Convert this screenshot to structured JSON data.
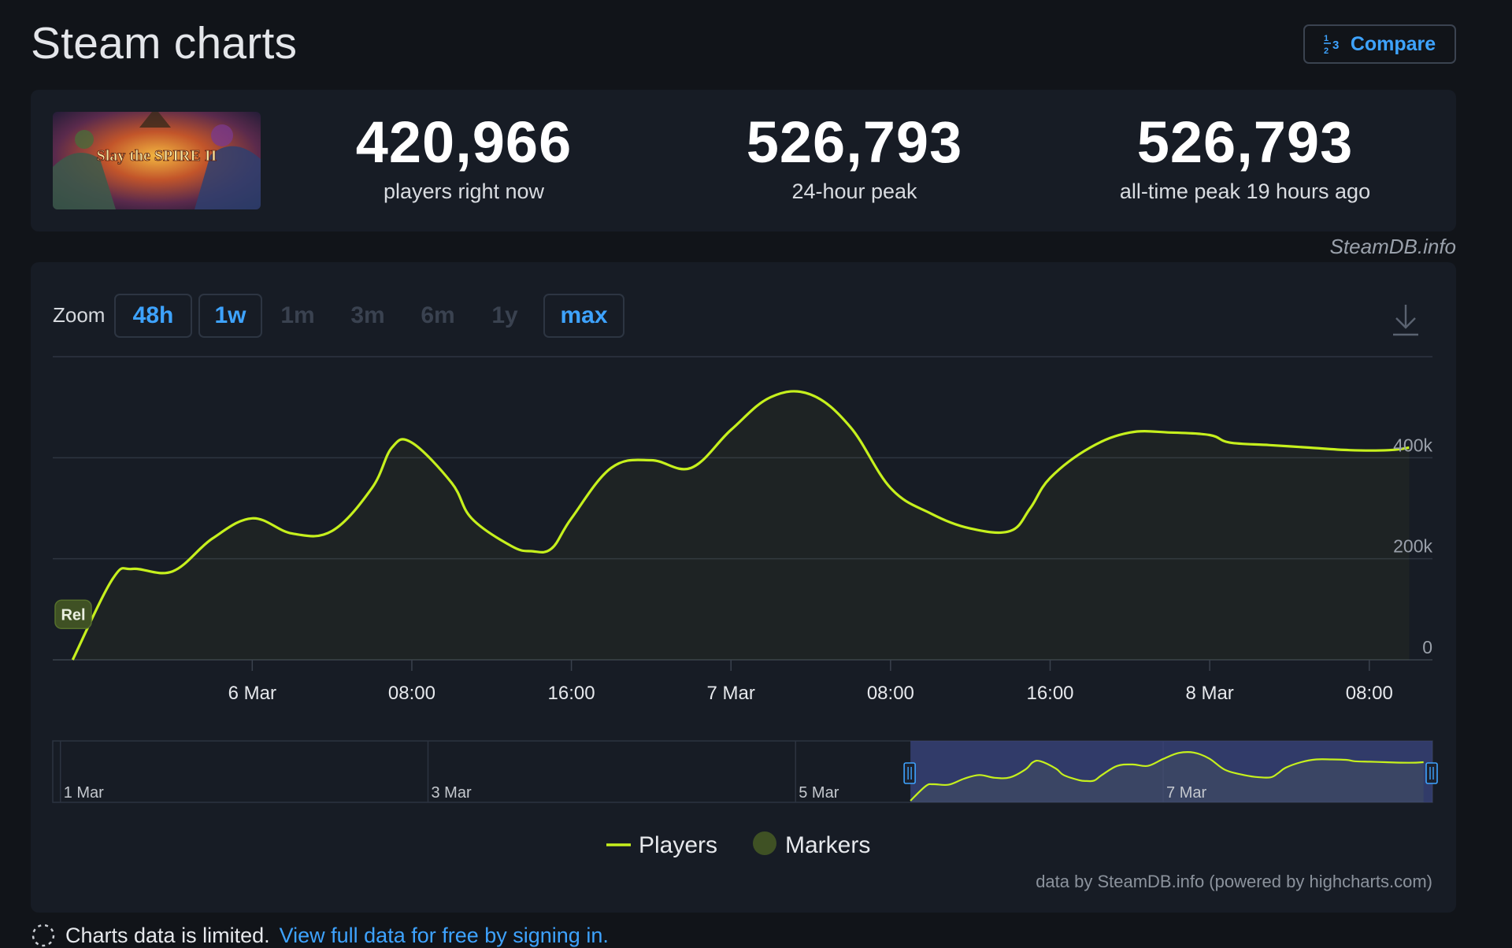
{
  "header": {
    "title": "Steam charts",
    "compare_label": "Compare"
  },
  "stats": {
    "game_logo_text": "Slay the SPIRE II",
    "current": {
      "value": "420,966",
      "label": "players right now"
    },
    "peak24": {
      "value": "526,793",
      "label": "24-hour peak"
    },
    "alltime": {
      "value": "526,793",
      "label": "all-time peak 19 hours ago"
    }
  },
  "watermark": "SteamDB.info",
  "zoom": {
    "label": "Zoom",
    "options": [
      {
        "label": "48h",
        "state": "active"
      },
      {
        "label": "1w",
        "state": "active"
      },
      {
        "label": "1m",
        "state": "disabled"
      },
      {
        "label": "3m",
        "state": "disabled"
      },
      {
        "label": "6m",
        "state": "disabled"
      },
      {
        "label": "1y",
        "state": "disabled"
      },
      {
        "label": "max",
        "state": "active"
      }
    ]
  },
  "chart_data": {
    "type": "area",
    "series": [
      {
        "name": "Players",
        "color": "#c6f01d",
        "x": [
          "2026-03-05T15:00",
          "2026-03-05T17:00",
          "2026-03-05T18:00",
          "2026-03-05T20:00",
          "2026-03-05T22:00",
          "2026-03-06T00:00",
          "2026-03-06T02:00",
          "2026-03-06T04:00",
          "2026-03-06T06:00",
          "2026-03-06T07:00",
          "2026-03-06T08:00",
          "2026-03-06T10:00",
          "2026-03-06T11:00",
          "2026-03-06T13:00",
          "2026-03-06T14:00",
          "2026-03-06T15:00",
          "2026-03-06T16:00",
          "2026-03-06T18:00",
          "2026-03-06T20:00",
          "2026-03-06T22:00",
          "2026-03-07T00:00",
          "2026-03-07T02:00",
          "2026-03-07T04:00",
          "2026-03-07T06:00",
          "2026-03-07T08:00",
          "2026-03-07T10:00",
          "2026-03-07T12:00",
          "2026-03-07T14:00",
          "2026-03-07T15:00",
          "2026-03-07T16:00",
          "2026-03-07T18:00",
          "2026-03-07T20:00",
          "2026-03-07T22:00",
          "2026-03-08T00:00",
          "2026-03-08T01:00",
          "2026-03-08T03:00",
          "2026-03-08T05:00",
          "2026-03-08T07:00",
          "2026-03-08T09:00",
          "2026-03-08T10:00"
        ],
        "values": [
          0,
          160000,
          180000,
          175000,
          240000,
          280000,
          250000,
          255000,
          340000,
          420000,
          430000,
          350000,
          280000,
          225000,
          215000,
          220000,
          280000,
          380000,
          395000,
          380000,
          455000,
          520000,
          525000,
          460000,
          340000,
          290000,
          260000,
          255000,
          300000,
          360000,
          420000,
          450000,
          450000,
          445000,
          430000,
          425000,
          420000,
          415000,
          415000,
          420000
        ]
      }
    ],
    "x_ticks": [
      "6 Mar",
      "08:00",
      "16:00",
      "7 Mar",
      "08:00",
      "16:00",
      "8 Mar",
      "08:00"
    ],
    "y_ticks": [
      "0",
      "200k",
      "400k"
    ],
    "ylim": [
      0,
      600000
    ],
    "marker_label": "Rel",
    "navigator": {
      "labels": [
        "1 Mar",
        "3 Mar",
        "5 Mar",
        "7 Mar"
      ],
      "selected_range": [
        "2026-03-05T15:00",
        "2026-03-08T10:00"
      ]
    },
    "legend": {
      "position": "bottom-center",
      "items": [
        {
          "name": "Players",
          "color": "#c6f01d"
        },
        {
          "name": "Markers",
          "color": "#3f5124"
        }
      ]
    },
    "credits": "data by SteamDB.info (powered by highcharts.com)"
  },
  "footer": {
    "note": "Charts data is limited.",
    "link": "View full data for free by signing in."
  }
}
